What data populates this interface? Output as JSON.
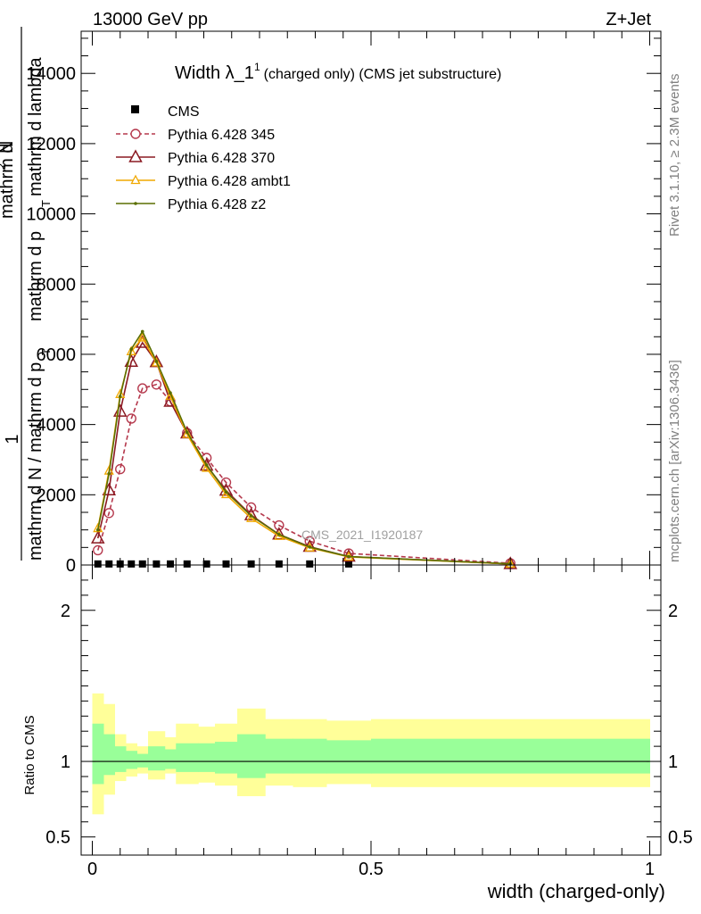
{
  "header": {
    "left": "13000 GeV pp",
    "right": "Z+Jet"
  },
  "side_labels": {
    "rivet": "Rivet 3.1.10, ≥ 2.3M events",
    "mcplots": "mcplots.cern.ch [arXiv:1306.3436]"
  },
  "chart_data": [
    {
      "type": "line",
      "title_main": "Width λ_1",
      "title_sup": "1",
      "title_rest": "(charged only) (CMS jet substructure)",
      "watermark": "CMS_2021_I1920187",
      "ylabel_parts": [
        "1",
        "mathrm d N / mathrm d p",
        "T",
        "mathrm d",
        "2",
        "N",
        "mathrm d p",
        "T",
        "mathrm d lambda"
      ],
      "xlim": [
        -0.02,
        1.02
      ],
      "ylim": [
        0,
        15200
      ],
      "yticks": [
        0,
        2000,
        4000,
        6000,
        8000,
        10000,
        12000,
        14000
      ],
      "ytick_labels": [
        "0",
        "2000",
        "4000",
        "6000",
        "8000",
        "10000",
        "12000",
        "14000"
      ],
      "legend_position": "top-left",
      "series": [
        {
          "name": "CMS",
          "color": "#000000",
          "marker": "square",
          "x": [
            0.01,
            0.03,
            0.05,
            0.07,
            0.09,
            0.115,
            0.14,
            0.17,
            0.205,
            0.24,
            0.285,
            0.335,
            0.39,
            0.46
          ],
          "y": [
            30,
            30,
            30,
            30,
            30,
            30,
            30,
            30,
            30,
            30,
            30,
            30,
            30,
            30
          ]
        },
        {
          "name": "Pythia 6.428 345",
          "color": "#b5394d",
          "marker": "circle",
          "dashed": true,
          "x": [
            0.01,
            0.03,
            0.05,
            0.07,
            0.09,
            0.115,
            0.14,
            0.17,
            0.205,
            0.24,
            0.285,
            0.335,
            0.39,
            0.46,
            0.75
          ],
          "y": [
            420,
            1480,
            2730,
            4170,
            5030,
            5140,
            4660,
            3760,
            3050,
            2350,
            1640,
            1130,
            680,
            330,
            50
          ]
        },
        {
          "name": "Pythia 6.428 370",
          "color": "#8b1a22",
          "marker": "triangle",
          "x": [
            0.01,
            0.03,
            0.05,
            0.07,
            0.09,
            0.115,
            0.14,
            0.17,
            0.205,
            0.24,
            0.285,
            0.335,
            0.39,
            0.46,
            0.75
          ],
          "y": [
            760,
            2130,
            4370,
            5790,
            6330,
            5780,
            4650,
            3750,
            2830,
            2120,
            1420,
            870,
            520,
            240,
            30
          ]
        },
        {
          "name": "Pythia 6.428 ambt1",
          "color": "#f0a800",
          "marker": "triangle-small",
          "x": [
            0.01,
            0.03,
            0.05,
            0.07,
            0.09,
            0.115,
            0.14,
            0.17,
            0.205,
            0.24,
            0.285,
            0.335,
            0.39,
            0.46,
            0.75
          ],
          "y": [
            1040,
            2680,
            4860,
            6080,
            6470,
            5760,
            4810,
            3720,
            2760,
            2010,
            1330,
            820,
            490,
            230,
            30
          ]
        },
        {
          "name": "Pythia 6.428 z2",
          "color": "#5a6e00",
          "marker": "dot",
          "x": [
            0.01,
            0.03,
            0.05,
            0.07,
            0.09,
            0.115,
            0.14,
            0.17,
            0.205,
            0.24,
            0.285,
            0.335,
            0.39,
            0.46,
            0.75
          ],
          "y": [
            1000,
            2600,
            4800,
            6150,
            6650,
            5800,
            4900,
            3780,
            2850,
            2080,
            1400,
            870,
            510,
            240,
            35
          ]
        }
      ]
    },
    {
      "type": "area",
      "ylabel": "Ratio to CMS",
      "xlabel": "width (charged-only)",
      "xlim": [
        -0.02,
        1.02
      ],
      "ylim": [
        0.38,
        2.3
      ],
      "yticks": [
        0.5,
        1,
        2
      ],
      "ytick_labels": [
        "0.5",
        "1",
        "2"
      ],
      "xticks": [
        0,
        0.5,
        1
      ],
      "xtick_labels": [
        "0",
        "0.5",
        "1"
      ],
      "reference_line": 1,
      "bin_edges": [
        0,
        0.02,
        0.04,
        0.06,
        0.08,
        0.1,
        0.13,
        0.15,
        0.19,
        0.22,
        0.26,
        0.31,
        0.36,
        0.42,
        0.5,
        1.0
      ],
      "band_outer": {
        "color": "#ffff99",
        "low": [
          0.65,
          0.78,
          0.87,
          0.9,
          0.92,
          0.88,
          0.92,
          0.85,
          0.86,
          0.84,
          0.77,
          0.84,
          0.83,
          0.85,
          0.83
        ],
        "high": [
          1.45,
          1.38,
          1.18,
          1.12,
          1.1,
          1.2,
          1.16,
          1.25,
          1.23,
          1.25,
          1.35,
          1.28,
          1.28,
          1.27,
          1.28
        ]
      },
      "band_inner": {
        "color": "#99ff99",
        "low": [
          0.85,
          0.91,
          0.93,
          0.95,
          0.96,
          0.94,
          0.95,
          0.93,
          0.93,
          0.92,
          0.89,
          0.92,
          0.92,
          0.92,
          0.92
        ],
        "high": [
          1.25,
          1.18,
          1.1,
          1.07,
          1.05,
          1.1,
          1.08,
          1.12,
          1.12,
          1.13,
          1.18,
          1.15,
          1.15,
          1.14,
          1.15
        ]
      }
    }
  ]
}
